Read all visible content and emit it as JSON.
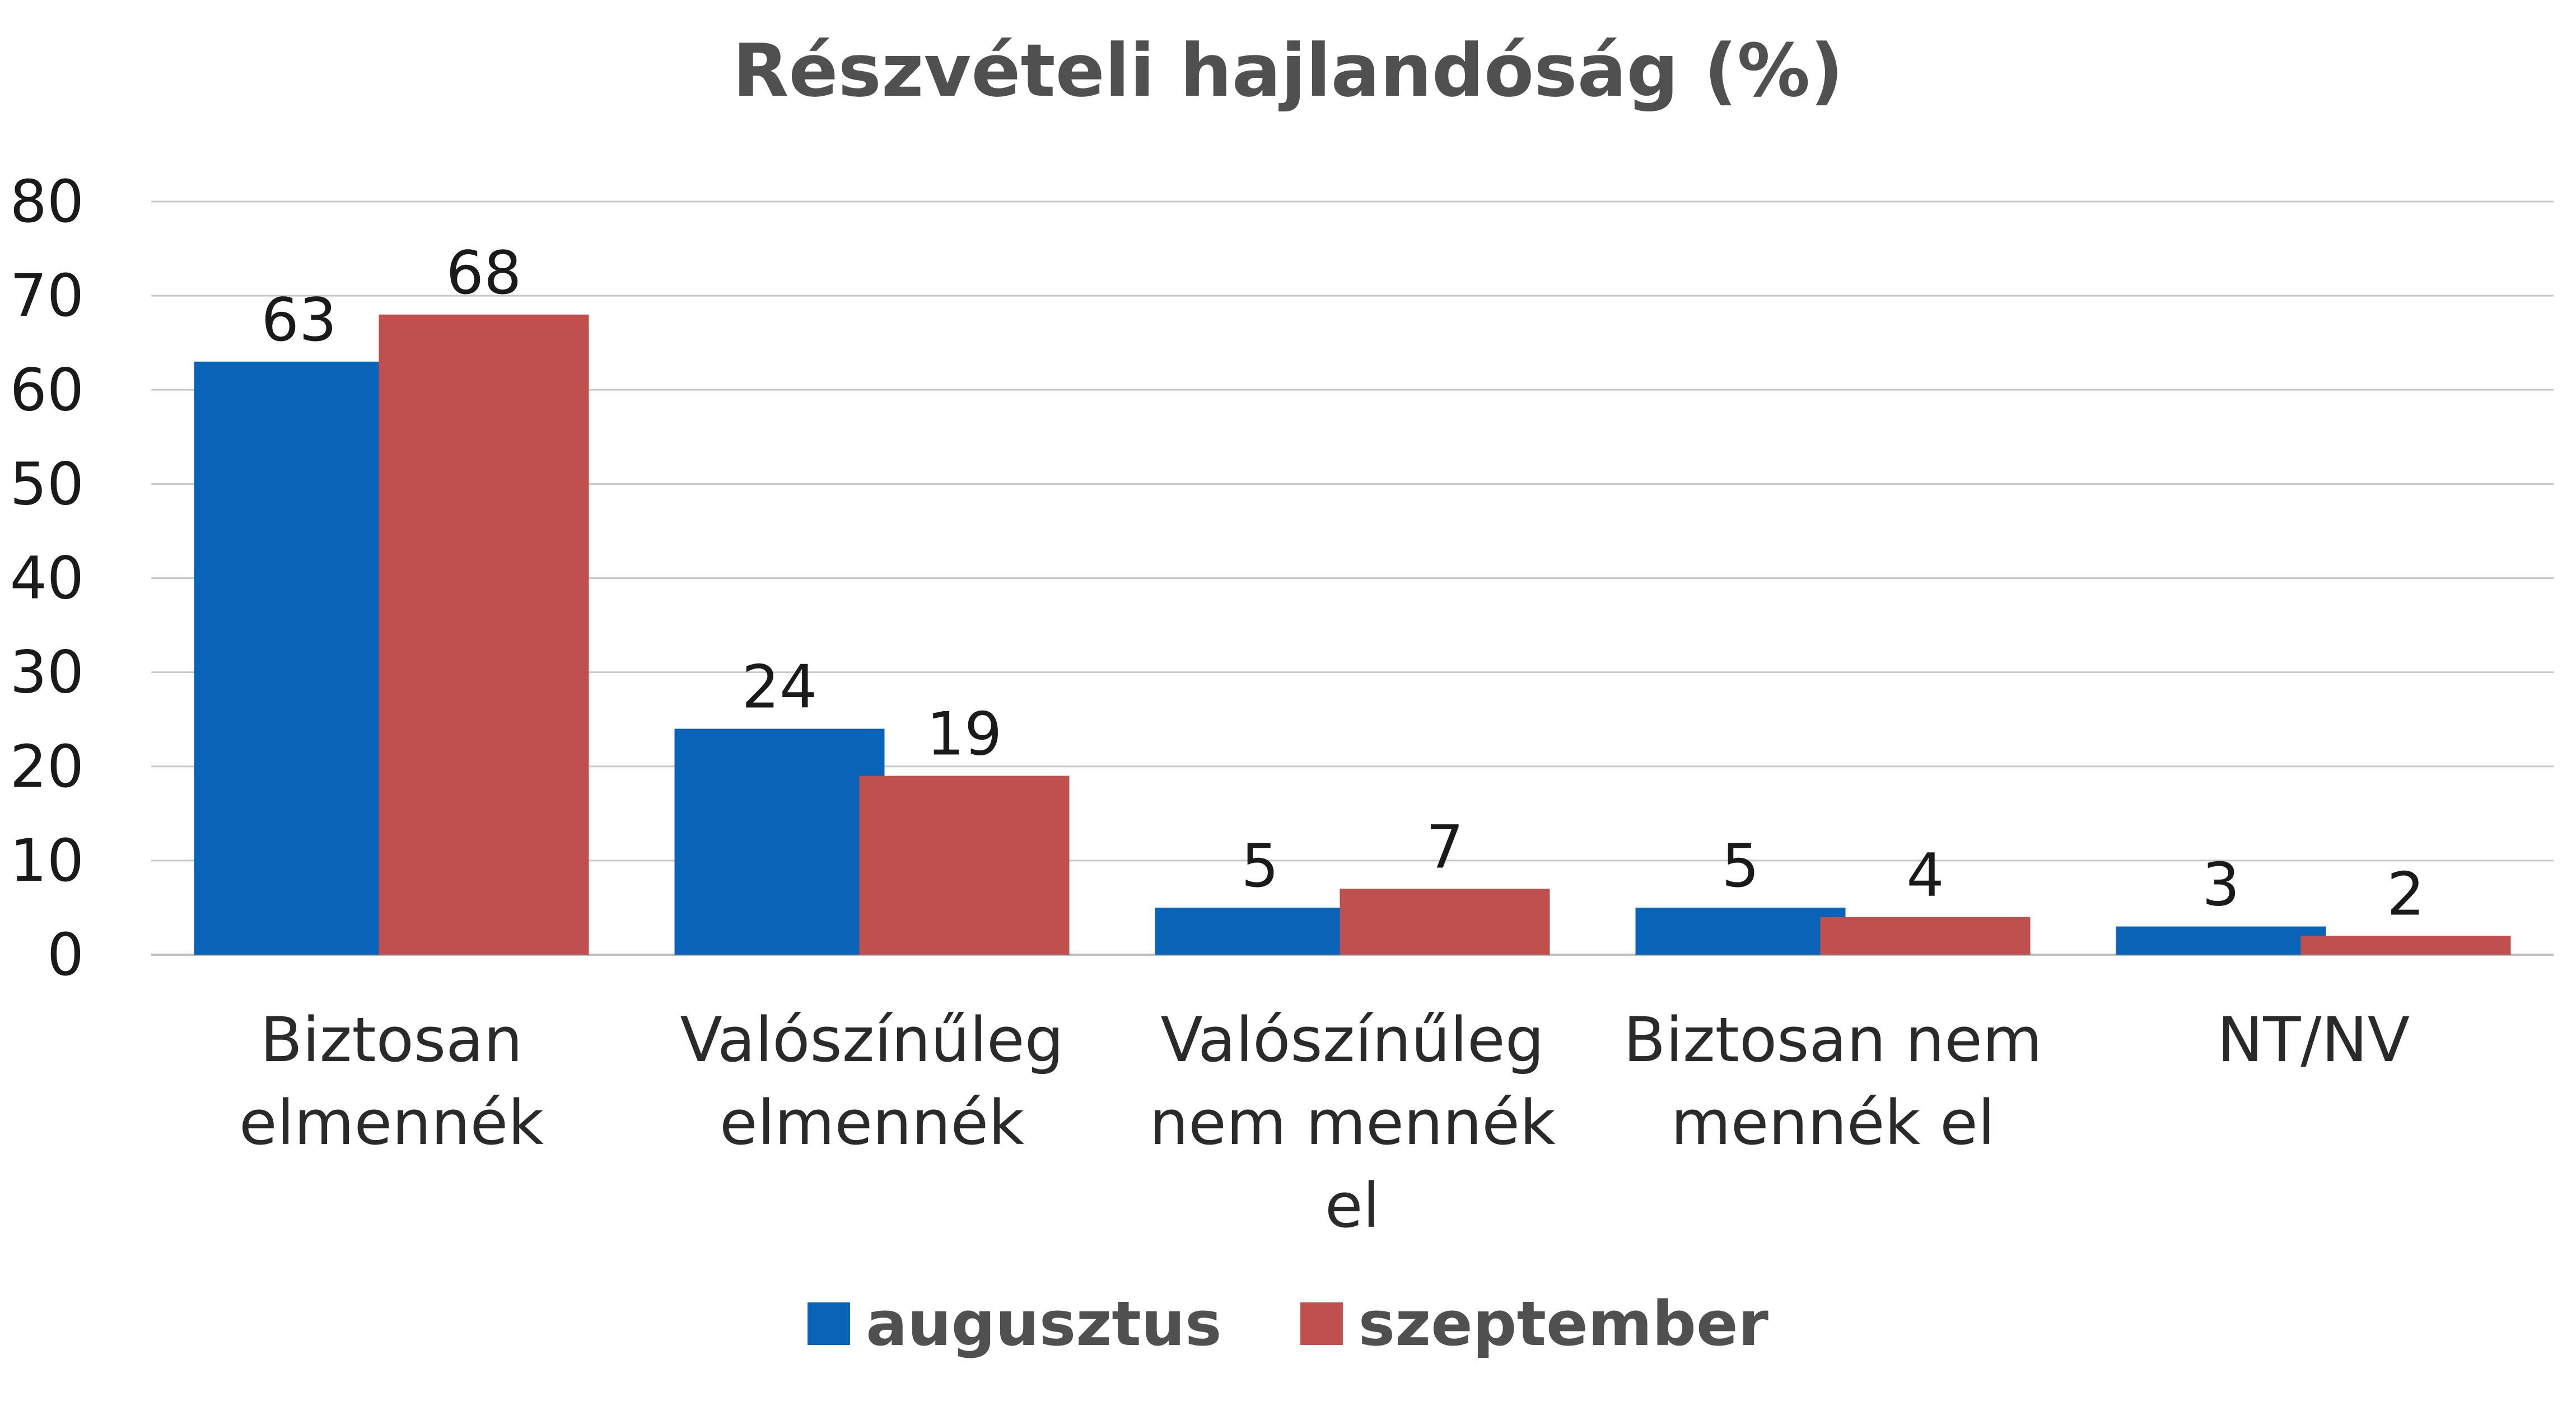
{
  "chart_data": {
    "type": "bar",
    "title": "Részvételi hajlandóság (%)",
    "categories": [
      [
        "Biztosan",
        "elmennék"
      ],
      [
        "Valószínűleg",
        "elmennék"
      ],
      [
        "Valószínűleg",
        "nem mennék",
        "el"
      ],
      [
        "Biztosan nem",
        "mennék el"
      ],
      [
        "NT/NV"
      ]
    ],
    "series": [
      {
        "name": "augusztus",
        "values": [
          63,
          24,
          5,
          5,
          3
        ],
        "color": "#0b63b8"
      },
      {
        "name": "szeptember",
        "values": [
          68,
          19,
          7,
          4,
          2
        ],
        "color": "#c0504d"
      }
    ],
    "ylim": [
      0,
      80
    ],
    "yticks": [
      0,
      10,
      20,
      30,
      40,
      50,
      60,
      70,
      80
    ],
    "grid": true,
    "legend": "bottom",
    "xlabel": "",
    "ylabel": ""
  }
}
